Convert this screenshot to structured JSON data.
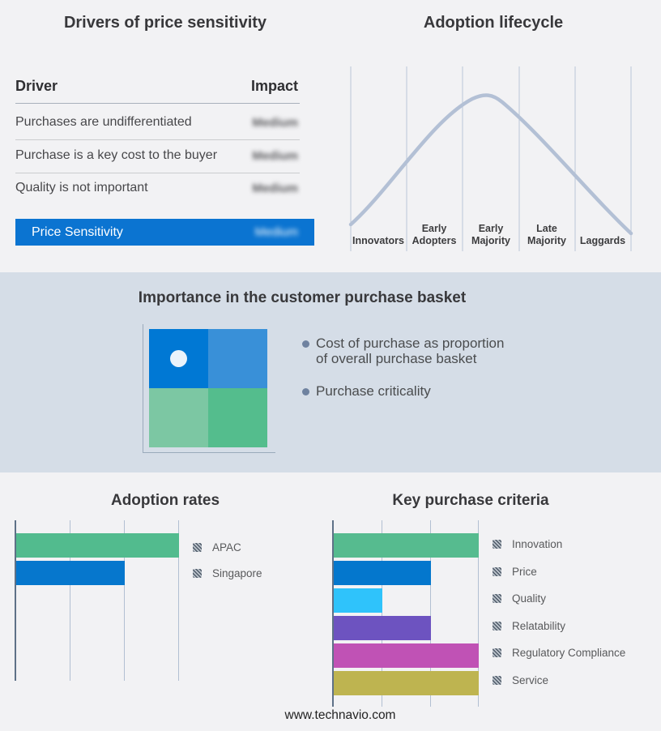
{
  "palette": {
    "page_bg": "#f2f2f4",
    "band_bg": "#d5dde7",
    "highlight_blue": "#0b74d1",
    "axis": "#5e7187",
    "gridline": "#b2bfd2",
    "curve": "#b3c0d5"
  },
  "footer": {
    "url": "www.technavio.com"
  },
  "chart_data": [
    {
      "id": "drivers_of_price_sensitivity",
      "type": "table",
      "title": "Drivers of price sensitivity",
      "columns": [
        "Driver",
        "Impact"
      ],
      "rows": [
        [
          "Purchases are undifferentiated",
          "Medium"
        ],
        [
          "Purchase is a key cost to the buyer",
          "Medium"
        ],
        [
          "Quality is not important",
          "Medium"
        ],
        [
          "Price Sensitivity",
          "Medium"
        ]
      ],
      "notes": "Impact values are blurred in the source; last row is highlighted on a blue bar",
      "highlight_color": "#0b74d1"
    },
    {
      "id": "adoption_lifecycle",
      "type": "line",
      "title": "Adoption lifecycle",
      "categories": [
        "Innovators",
        "Early Adopters",
        "Early Majority",
        "Late Majority",
        "Laggards"
      ],
      "description": "Unlabeled bell curve peaking over the Early Majority stage",
      "curve_color": "#b3c0d5",
      "grid": true
    },
    {
      "id": "purchase_basket",
      "type": "heatmap",
      "title": "Importance in the customer purchase basket",
      "rows": 2,
      "cols": 2,
      "cell_colors": [
        [
          "#0078d4",
          "#3990d8"
        ],
        [
          "#7cc7a3",
          "#54bd8d"
        ]
      ],
      "marker": {
        "row": 0,
        "col": 0,
        "color": "#eaf3fb"
      },
      "annotations": [
        "Cost of purchase as proportion of overall purchase basket",
        "Purchase criticality"
      ]
    },
    {
      "id": "adoption_rates",
      "type": "bar",
      "title": "Adoption rates",
      "orientation": "horizontal",
      "categories": [
        "APAC",
        "Singapore"
      ],
      "values": [
        3,
        2
      ],
      "value_units": "relative gridline units (axis unlabeled)",
      "xlim": [
        0,
        3
      ],
      "colors": [
        "#52bb8e",
        "#0677cd"
      ],
      "grid": true,
      "legend_position": "right"
    },
    {
      "id": "key_purchase_criteria",
      "type": "bar",
      "title": "Key purchase criteria",
      "orientation": "horizontal",
      "categories": [
        "Innovation",
        "Price",
        "Quality",
        "Relatability",
        "Regulatory Compliance",
        "Service"
      ],
      "values": [
        3,
        2,
        1,
        2,
        3,
        3
      ],
      "value_units": "relative gridline units (axis unlabeled)",
      "xlim": [
        0,
        3
      ],
      "colors": [
        "#56bb8f",
        "#0477cd",
        "#2fc3fb",
        "#6d53c0",
        "#c052b5",
        "#beb450"
      ],
      "grid": true,
      "legend_position": "right"
    }
  ]
}
